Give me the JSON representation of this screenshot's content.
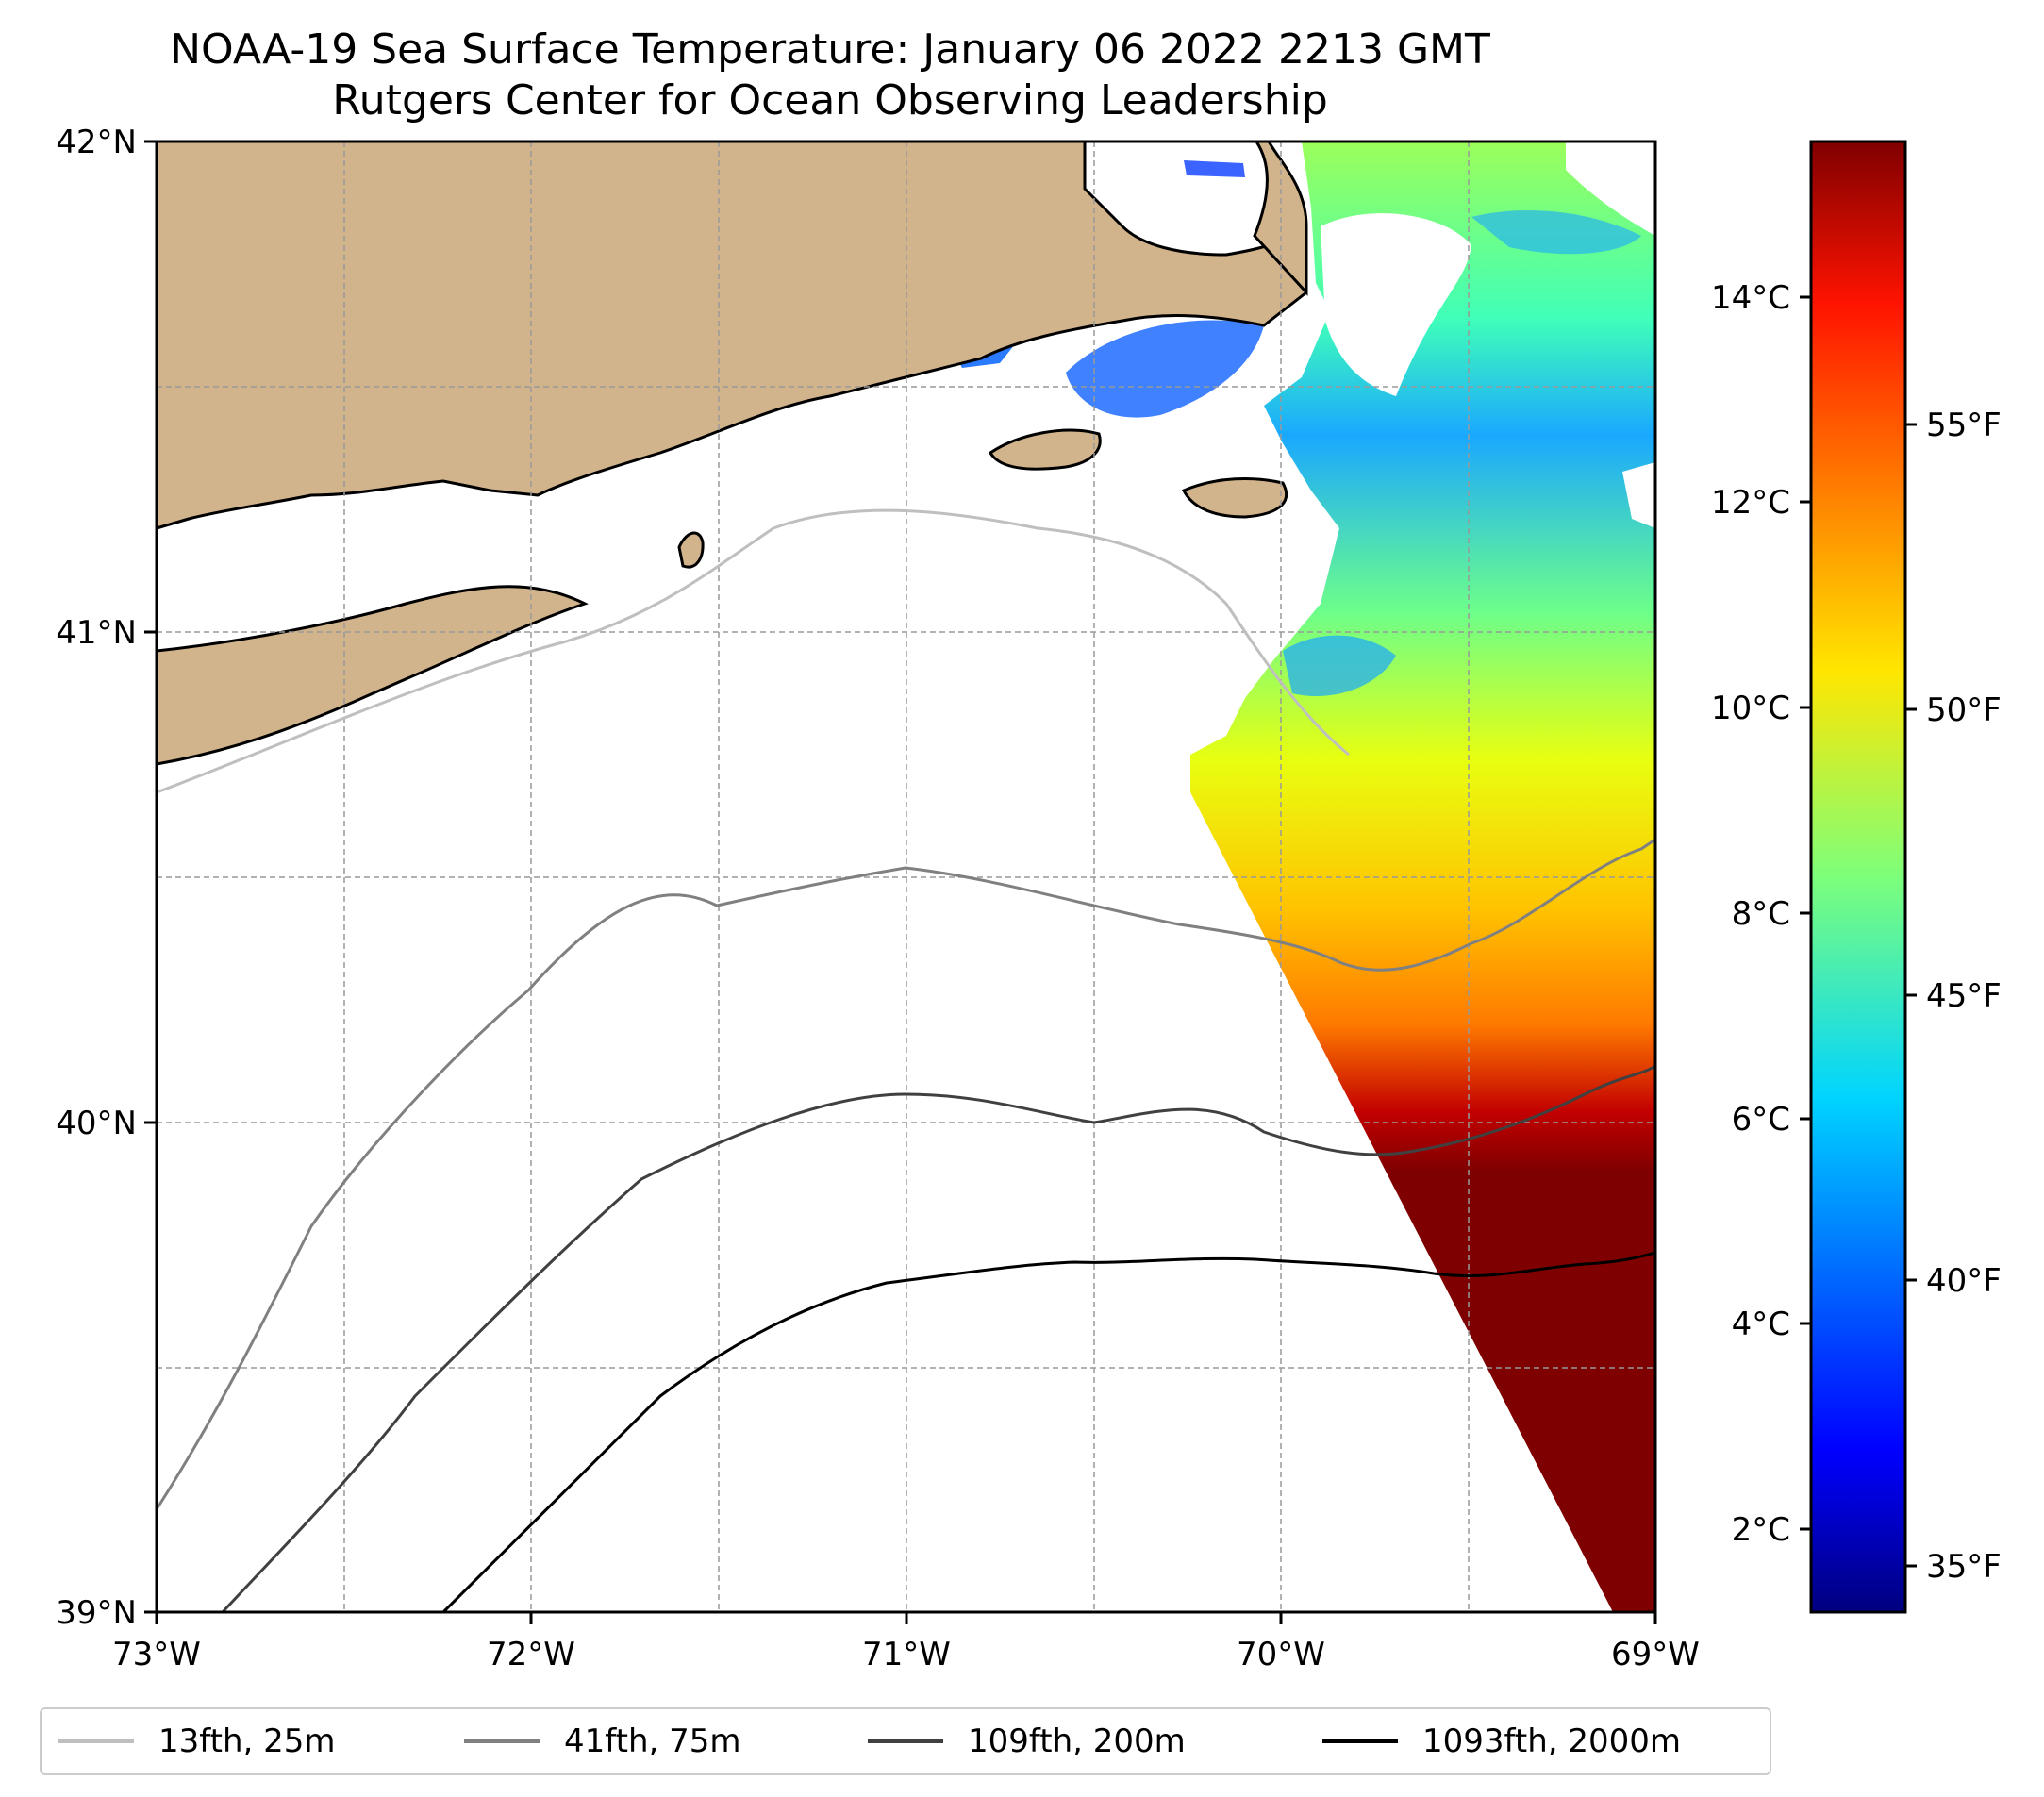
{
  "title": "NOAA-19 Sea Surface Temperature: January 06 2022 2213 GMT",
  "subtitle": "Rutgers Center for Ocean Observing Leadership",
  "map": {
    "lon_range": [
      -73,
      -69
    ],
    "lat_range": [
      39,
      42
    ],
    "lon_ticks": [
      "73°W",
      "72°W",
      "71°W",
      "70°W",
      "69°W"
    ],
    "lat_ticks": [
      "42°N",
      "41°N",
      "40°N",
      "39°N"
    ],
    "gridlines": true,
    "land_color": "#d2b48c",
    "no_data_color": "#ffffff"
  },
  "colorbar": {
    "colormap": "jet",
    "celsius_ticks": [
      "14°C",
      "12°C",
      "10°C",
      "8°C",
      "6°C",
      "4°C",
      "2°C"
    ],
    "fahrenheit_ticks": [
      "55°F",
      "50°F",
      "45°F",
      "40°F",
      "35°F"
    ],
    "range_celsius": [
      1.3,
      15.5
    ]
  },
  "legend": {
    "placement": "bottom",
    "items": [
      {
        "label": "13fth, 25m",
        "color": "#bfbfbf"
      },
      {
        "label": "41fth, 75m",
        "color": "#808080"
      },
      {
        "label": "109fth, 200m",
        "color": "#404040"
      },
      {
        "label": "1093fth, 2000m",
        "color": "#000000"
      }
    ]
  }
}
